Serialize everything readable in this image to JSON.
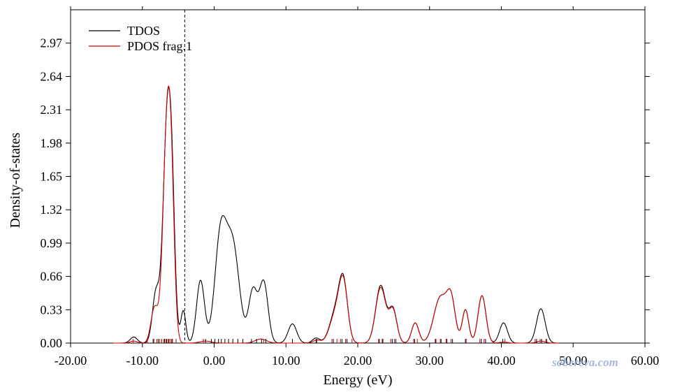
{
  "chart_data": {
    "type": "line",
    "xlabel": "Energy (eV)",
    "ylabel": "Density-of-states",
    "xlim": [
      -20,
      60
    ],
    "ylim": [
      0,
      3.3
    ],
    "x_ticks": [
      -20,
      -10,
      0,
      10,
      20,
      30,
      40,
      50,
      60
    ],
    "x_tick_labels": [
      "-20.00",
      "-10.00",
      "0.00",
      "10.00",
      "20.00",
      "30.00",
      "40.00",
      "50.00",
      "60.00"
    ],
    "y_ticks": [
      0,
      0.33,
      0.66,
      0.99,
      1.32,
      1.65,
      1.98,
      2.31,
      2.64,
      2.97
    ],
    "y_tick_labels": [
      "0.00",
      "0.33",
      "0.66",
      "0.99",
      "1.32",
      "1.65",
      "1.98",
      "2.31",
      "2.64",
      "2.97"
    ],
    "fermi_level": -4.1,
    "legend": {
      "placement": "top-left"
    },
    "grid": false,
    "series": [
      {
        "name": "TDOS",
        "color": "#000000",
        "peaks": [
          {
            "center": -11.2,
            "height": 0.06,
            "width": 0.5
          },
          {
            "center": -8.1,
            "height": 0.5,
            "width": 0.5
          },
          {
            "center": -6.6,
            "height": 2.0,
            "width": 0.55
          },
          {
            "center": -5.9,
            "height": 1.2,
            "width": 0.45
          },
          {
            "center": -4.3,
            "height": 0.32,
            "width": 0.35
          },
          {
            "center": -1.9,
            "height": 0.62,
            "width": 0.55
          },
          {
            "center": 0.9,
            "height": 1.05,
            "width": 0.8
          },
          {
            "center": 2.6,
            "height": 0.95,
            "width": 0.9
          },
          {
            "center": 5.4,
            "height": 0.52,
            "width": 0.6
          },
          {
            "center": 6.9,
            "height": 0.6,
            "width": 0.6
          },
          {
            "center": 10.9,
            "height": 0.19,
            "width": 0.6
          },
          {
            "center": 14.2,
            "height": 0.05,
            "width": 0.5
          },
          {
            "center": 16.9,
            "height": 0.3,
            "width": 0.8
          },
          {
            "center": 18.0,
            "height": 0.56,
            "width": 0.6
          },
          {
            "center": 23.2,
            "height": 0.57,
            "width": 0.7
          },
          {
            "center": 24.9,
            "height": 0.33,
            "width": 0.55
          },
          {
            "center": 28.0,
            "height": 0.2,
            "width": 0.5
          },
          {
            "center": 31.5,
            "height": 0.45,
            "width": 0.9
          },
          {
            "center": 33.0,
            "height": 0.4,
            "width": 0.6
          },
          {
            "center": 35.0,
            "height": 0.33,
            "width": 0.45
          },
          {
            "center": 37.3,
            "height": 0.47,
            "width": 0.55
          },
          {
            "center": 40.3,
            "height": 0.2,
            "width": 0.55
          },
          {
            "center": 45.5,
            "height": 0.34,
            "width": 0.6
          }
        ]
      },
      {
        "name": "PDOS frag.1",
        "color": "#d40000",
        "peaks": [
          {
            "center": -11.2,
            "height": 0.02,
            "width": 0.5
          },
          {
            "center": -8.3,
            "height": 0.35,
            "width": 0.5
          },
          {
            "center": -6.6,
            "height": 2.0,
            "width": 0.55
          },
          {
            "center": -5.95,
            "height": 1.1,
            "width": 0.45
          },
          {
            "center": -1.2,
            "height": 0.02,
            "width": 0.8
          },
          {
            "center": 6.5,
            "height": 0.04,
            "width": 0.8
          },
          {
            "center": 14.3,
            "height": 0.03,
            "width": 0.5
          },
          {
            "center": 16.9,
            "height": 0.28,
            "width": 0.8
          },
          {
            "center": 18.0,
            "height": 0.55,
            "width": 0.6
          },
          {
            "center": 23.2,
            "height": 0.55,
            "width": 0.7
          },
          {
            "center": 24.9,
            "height": 0.32,
            "width": 0.55
          },
          {
            "center": 28.0,
            "height": 0.2,
            "width": 0.5
          },
          {
            "center": 31.5,
            "height": 0.45,
            "width": 0.9
          },
          {
            "center": 33.0,
            "height": 0.4,
            "width": 0.6
          },
          {
            "center": 35.0,
            "height": 0.33,
            "width": 0.45
          },
          {
            "center": 37.3,
            "height": 0.47,
            "width": 0.55
          },
          {
            "center": 40.3,
            "height": 0.01,
            "width": 0.55
          },
          {
            "center": 45.5,
            "height": 0.02,
            "width": 0.6
          }
        ]
      }
    ],
    "level_sticks": {
      "black": [
        -8.5,
        -7.8,
        -6.9,
        -6.6,
        -6.3,
        -5.9,
        -1.2,
        -0.4,
        0.1,
        0.6,
        1.0,
        1.5,
        2.0,
        2.6,
        3.3,
        4.0,
        5.2,
        5.9,
        6.6,
        7.2,
        10.9,
        14.2,
        16.6,
        17.8,
        18.5,
        23.0,
        23.5,
        24.8,
        25.3,
        27.9,
        30.8,
        31.6,
        32.4,
        33.2,
        35.0,
        37.2,
        37.8,
        40.2,
        44.9,
        45.6,
        46.3
      ],
      "red": [
        -11.3,
        -9.3,
        -8.4,
        -8.0,
        -7.6,
        -7.3,
        -7.0,
        -6.7,
        -6.4,
        -6.1,
        -5.8,
        -5.3,
        -1.5,
        6.9,
        14.3,
        16.4,
        17.1,
        17.6,
        18.3,
        19.2,
        22.9,
        23.4,
        24.6,
        25.1,
        27.8,
        28.3,
        30.9,
        31.5,
        32.3,
        33.0,
        35.1,
        37.0,
        37.6,
        40.5,
        44.7,
        45.4,
        46.2
      ]
    }
  },
  "watermark_text": "sobereva.com"
}
